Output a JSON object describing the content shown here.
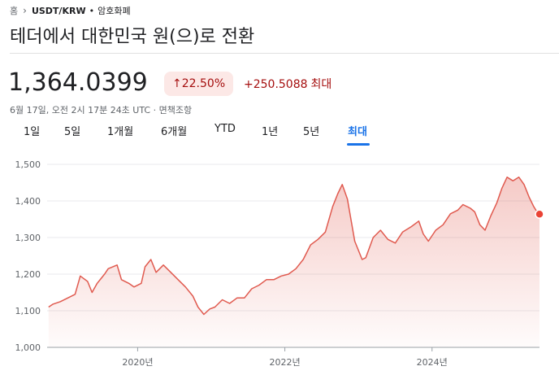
{
  "breadcrumb": {
    "home": "홈",
    "symbol": "USDT/KRW",
    "category": "암호화폐"
  },
  "title": "테더에서 대한민국 원(으)로 전환",
  "price": "1,364.0399",
  "change": {
    "percent": "22.50%",
    "absolute": "+250.5088",
    "period": "최대"
  },
  "timestamp": "6월 17일, 오전 2시 17분 24초 UTC · 면책조항",
  "tabs": [
    {
      "label": "1일",
      "active": false
    },
    {
      "label": "5일",
      "active": false
    },
    {
      "label": "1개월",
      "active": false
    },
    {
      "label": "6개월",
      "active": false
    },
    {
      "label": "YTD",
      "active": false
    },
    {
      "label": "1년",
      "active": false
    },
    {
      "label": "5년",
      "active": false
    },
    {
      "label": "최대",
      "active": true
    }
  ],
  "colors": {
    "negative": "#a50e0e",
    "badge_bg": "#fce8e6",
    "accent": "#1a73e8",
    "line": "#e05a4f"
  },
  "icons": {
    "breadcrumb_sep": "chevron-right-icon",
    "change_arrow": "arrow-up-icon"
  },
  "chart_data": {
    "type": "area",
    "yticks": [
      "1,500",
      "1,400",
      "1,300",
      "1,200",
      "1,100",
      "1,000"
    ],
    "ytick_values": [
      1500,
      1400,
      1300,
      1200,
      1100,
      1000
    ],
    "xticks": [
      "2020년",
      "2022년",
      "2024년"
    ],
    "xtick_values": [
      2020,
      2022,
      2024
    ],
    "ylim": [
      1000,
      1500
    ],
    "xlim": [
      2018.77,
      2025.46
    ],
    "grid": true,
    "series": [
      {
        "values": [
          [
            2018.79,
            1110
          ],
          [
            2018.85,
            1118
          ],
          [
            2018.95,
            1125
          ],
          [
            2019.05,
            1135
          ],
          [
            2019.15,
            1145
          ],
          [
            2019.22,
            1195
          ],
          [
            2019.32,
            1180
          ],
          [
            2019.38,
            1150
          ],
          [
            2019.45,
            1175
          ],
          [
            2019.55,
            1200
          ],
          [
            2019.6,
            1215
          ],
          [
            2019.72,
            1225
          ],
          [
            2019.78,
            1185
          ],
          [
            2019.88,
            1175
          ],
          [
            2019.95,
            1165
          ],
          [
            2020.05,
            1175
          ],
          [
            2020.1,
            1220
          ],
          [
            2020.18,
            1240
          ],
          [
            2020.25,
            1205
          ],
          [
            2020.35,
            1225
          ],
          [
            2020.45,
            1205
          ],
          [
            2020.55,
            1185
          ],
          [
            2020.65,
            1165
          ],
          [
            2020.75,
            1140
          ],
          [
            2020.82,
            1110
          ],
          [
            2020.9,
            1090
          ],
          [
            2020.98,
            1105
          ],
          [
            2021.05,
            1110
          ],
          [
            2021.15,
            1130
          ],
          [
            2021.25,
            1120
          ],
          [
            2021.35,
            1135
          ],
          [
            2021.45,
            1135
          ],
          [
            2021.55,
            1160
          ],
          [
            2021.65,
            1170
          ],
          [
            2021.75,
            1185
          ],
          [
            2021.85,
            1185
          ],
          [
            2021.95,
            1195
          ],
          [
            2022.05,
            1200
          ],
          [
            2022.15,
            1215
          ],
          [
            2022.25,
            1240
          ],
          [
            2022.35,
            1280
          ],
          [
            2022.45,
            1295
          ],
          [
            2022.55,
            1315
          ],
          [
            2022.65,
            1385
          ],
          [
            2022.72,
            1420
          ],
          [
            2022.78,
            1445
          ],
          [
            2022.85,
            1405
          ],
          [
            2022.95,
            1290
          ],
          [
            2023.05,
            1240
          ],
          [
            2023.1,
            1245
          ],
          [
            2023.2,
            1300
          ],
          [
            2023.3,
            1320
          ],
          [
            2023.4,
            1295
          ],
          [
            2023.5,
            1285
          ],
          [
            2023.6,
            1315
          ],
          [
            2023.72,
            1330
          ],
          [
            2023.82,
            1345
          ],
          [
            2023.88,
            1310
          ],
          [
            2023.95,
            1290
          ],
          [
            2024.05,
            1320
          ],
          [
            2024.15,
            1335
          ],
          [
            2024.25,
            1365
          ],
          [
            2024.35,
            1375
          ],
          [
            2024.42,
            1390
          ],
          [
            2024.52,
            1380
          ],
          [
            2024.58,
            1370
          ],
          [
            2024.65,
            1335
          ],
          [
            2024.72,
            1320
          ],
          [
            2024.8,
            1360
          ],
          [
            2024.88,
            1395
          ],
          [
            2024.95,
            1435
          ],
          [
            2025.02,
            1465
          ],
          [
            2025.1,
            1455
          ],
          [
            2025.18,
            1465
          ],
          [
            2025.25,
            1445
          ],
          [
            2025.32,
            1410
          ],
          [
            2025.38,
            1385
          ],
          [
            2025.42,
            1372
          ],
          [
            2025.46,
            1364
          ]
        ]
      }
    ]
  }
}
